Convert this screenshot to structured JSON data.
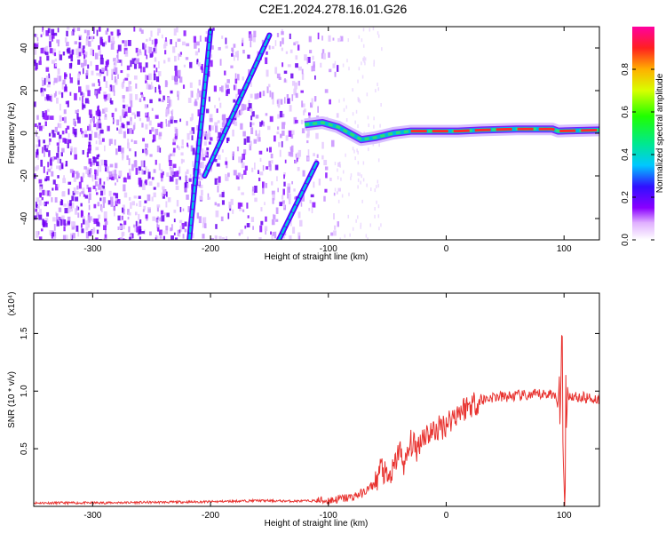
{
  "title": "C2E1.2024.278.16.01.G26",
  "chart_data": [
    {
      "type": "heatmap",
      "xlabel": "Height of straight line (km)",
      "ylabel": "Frequency (Hz)",
      "xlim": [
        -350,
        130
      ],
      "ylim": [
        -50,
        50
      ],
      "xticks": [
        -300,
        -200,
        -100,
        0,
        100
      ],
      "yticks": [
        -40,
        -20,
        0,
        20,
        40
      ],
      "colorbar": {
        "label": "Normalized spectral amplitude",
        "range": [
          0,
          1
        ],
        "ticks": [
          "0.0",
          "0.2",
          "0.4",
          "0.6",
          "0.8"
        ]
      },
      "features": {
        "diagonal_traces": [
          {
            "points": [
              [
                -218,
                -50
              ],
              [
                -200,
                48
              ]
            ]
          },
          {
            "points": [
              [
                -205,
                -20
              ],
              [
                -150,
                46
              ]
            ]
          },
          {
            "points": [
              [
                -142,
                -50
              ],
              [
                -110,
                -14
              ]
            ]
          }
        ],
        "main_signal": [
          [
            -120,
            4
          ],
          [
            -105,
            5
          ],
          [
            -92,
            3
          ],
          [
            -82,
            0
          ],
          [
            -72,
            -3
          ],
          [
            -60,
            -2
          ],
          [
            -45,
            0
          ],
          [
            -30,
            1
          ],
          [
            -10,
            1
          ],
          [
            10,
            1
          ],
          [
            30,
            1.5
          ],
          [
            60,
            2
          ],
          [
            90,
            2
          ],
          [
            95,
            1
          ],
          [
            130,
            1.5
          ]
        ]
      }
    },
    {
      "type": "line",
      "xlabel": "Height of straight line (km)",
      "ylabel": "SNR (10 * v/v)",
      "y_multiplier": "(x10⁴)",
      "xlim": [
        -350,
        130
      ],
      "ylim": [
        0,
        1.85
      ],
      "xticks": [
        -300,
        -200,
        -100,
        0,
        100
      ],
      "yticks": [
        "0.5",
        "1.0",
        "1.5"
      ],
      "series": [
        {
          "color": "#e8322f",
          "x": [
            -350,
            -300,
            -250,
            -200,
            -160,
            -130,
            -100,
            -80,
            -70,
            -60,
            -55,
            -50,
            -45,
            -40,
            -35,
            -30,
            -25,
            -20,
            -10,
            0,
            10,
            20,
            30,
            40,
            50,
            60,
            70,
            80,
            90,
            95,
            98,
            100,
            102,
            105,
            110,
            120,
            130
          ],
          "y": [
            0.03,
            0.03,
            0.035,
            0.04,
            0.05,
            0.045,
            0.05,
            0.08,
            0.12,
            0.2,
            0.35,
            0.22,
            0.3,
            0.5,
            0.35,
            0.55,
            0.5,
            0.62,
            0.65,
            0.72,
            0.82,
            0.88,
            0.92,
            0.95,
            0.95,
            0.96,
            0.96,
            0.97,
            0.98,
            0.9,
            1.7,
            0.1,
            1.0,
            0.96,
            0.95,
            0.94,
            0.93
          ]
        }
      ]
    }
  ]
}
